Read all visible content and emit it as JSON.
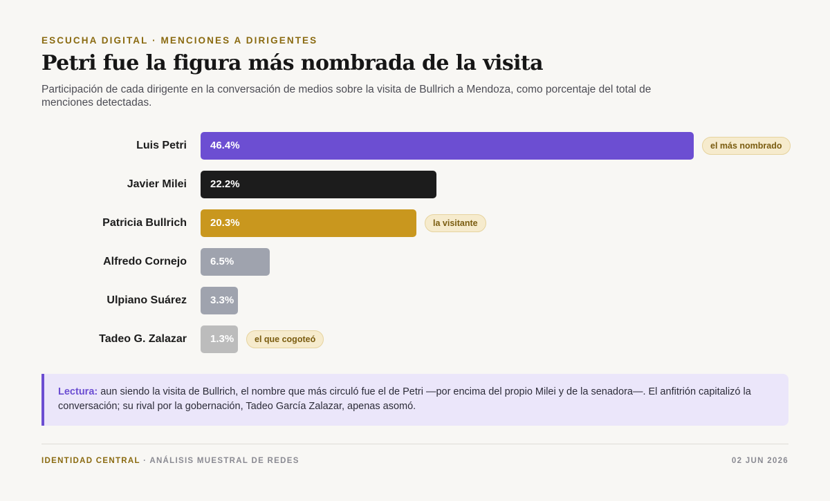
{
  "header": {
    "kicker": "ESCUCHA DIGITAL · MENCIONES A DIRIGENTES",
    "title": "Petri fue la figura más nombrada de la visita",
    "subtitle": "Participación de cada dirigente en la conversación de medios sobre la visita de Bullrich a Mendoza, como porcentaje del total de menciones detectadas."
  },
  "chart_data": {
    "type": "bar",
    "orientation": "horizontal",
    "title": "Petri fue la figura más nombrada de la visita",
    "categories": [
      "Luis Petri",
      "Javier Milei",
      "Patricia Bullrich",
      "Alfredo Cornejo",
      "Ulpiano Suárez",
      "Tadeo G. Zalazar"
    ],
    "values": [
      46.4,
      22.2,
      20.3,
      6.5,
      3.3,
      1.3
    ],
    "value_labels": [
      "46.4%",
      "22.2%",
      "20.3%",
      "6.5%",
      "3.3%",
      "1.3%"
    ],
    "colors": [
      "#6c4ed2",
      "#1c1c1c",
      "#c9971e",
      "#9fa3ae",
      "#9fa3ae",
      "#bcbcbc"
    ],
    "annotations": [
      "el más nombrado",
      "",
      "la visitante",
      "",
      "",
      "el que cogoteó"
    ],
    "xlim": [
      0,
      47
    ],
    "grid": false,
    "xlabel": "",
    "ylabel": ""
  },
  "note": {
    "lead": "Lectura:",
    "text": " aun siendo la visita de Bullrich, el nombre que más circuló fue el de Petri —por encima del propio Milei y de la senadora—. El anfitrión capitalizó la conversación; su rival por la gobernación, Tadeo García Zalazar, apenas asomó."
  },
  "footer": {
    "brand": "IDENTIDAD CENTRAL",
    "source": " · ANÁLISIS MUESTRAL DE REDES",
    "date": "02 JUN 2026"
  }
}
